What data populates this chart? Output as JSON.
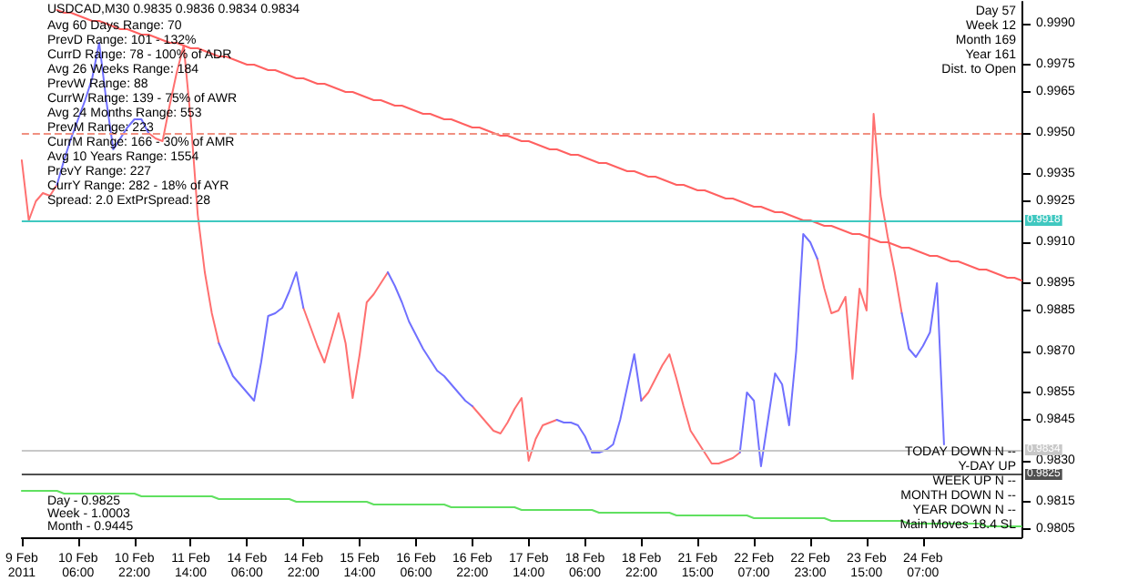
{
  "chart_data": {
    "type": "line",
    "title": "USDCAD,M30 0.9835 0.9836 0.9834 0.9834",
    "categories": [
      "9 Feb 2011",
      null,
      null,
      null,
      null,
      null,
      null,
      null,
      "10 Feb 06:00",
      null,
      null,
      null,
      null,
      null,
      null,
      null,
      "10 Feb 22:00",
      null,
      null,
      null,
      null,
      null,
      null,
      null,
      "11 Feb 14:00",
      null,
      null,
      null,
      null,
      null,
      null,
      null,
      "14 Feb 06:00",
      null,
      null,
      null,
      null,
      null,
      null,
      null,
      "14 Feb 22:00",
      null,
      null,
      null,
      null,
      null,
      null,
      null,
      "15 Feb 14:00",
      null,
      null,
      null,
      null,
      null,
      null,
      null,
      "16 Feb 06:00",
      null,
      null,
      null,
      null,
      null,
      null,
      null,
      "16 Feb 22:00",
      null,
      null,
      null,
      null,
      null,
      null,
      null,
      "17 Feb 14:00",
      null,
      null,
      null,
      null,
      null,
      null,
      null,
      "18 Feb 06:00",
      null,
      null,
      null,
      null,
      null,
      null,
      null,
      "18 Feb 22:00",
      null,
      null,
      null,
      null,
      null,
      null,
      null,
      "21 Feb 15:00",
      null,
      null,
      null,
      null,
      null,
      null,
      null,
      "22 Feb 07:00",
      null,
      null,
      null,
      null,
      null,
      null,
      null,
      "22 Feb 23:00",
      null,
      null,
      null,
      null,
      null,
      null,
      null,
      "23 Feb 15:00",
      null,
      null,
      null,
      null,
      null,
      null,
      null,
      "24 Feb 07:00",
      null,
      null,
      null,
      null,
      null,
      null,
      null,
      null,
      null,
      null,
      null,
      null,
      null,
      null
    ],
    "ylim": [
      0.9802,
      0.9998
    ],
    "yticks": [
      {
        "value": 0.999,
        "label": "0.9990"
      },
      0.9975,
      0.9965,
      {
        "value": 0.995,
        "label": "0.9950"
      },
      0.9935,
      0.9925,
      {
        "value": 0.991,
        "label": "0.9910"
      },
      0.9895,
      0.9885,
      {
        "value": 0.987,
        "label": "0.9870"
      },
      0.9855,
      0.9845,
      {
        "value": 0.983,
        "label": "0.9830"
      },
      0.9815,
      0.9805
    ],
    "grid": false,
    "marker": "none",
    "line_style": "solid",
    "series": [
      {
        "color": "#ff7070",
        "values": [
          0.994,
          0.9918,
          0.9925,
          0.9928,
          0.9927,
          0.9931,
          null,
          null,
          null,
          null,
          null,
          null,
          null,
          null,
          null,
          null,
          null,
          null,
          0.995,
          0.9948,
          0.9947,
          0.996,
          0.9972,
          0.9982,
          0.9955,
          0.992,
          0.9899,
          0.9884,
          0.9873,
          null,
          null,
          null,
          null,
          null,
          null,
          null,
          null,
          null,
          null,
          null,
          0.9886,
          0.9879,
          0.9872,
          0.9866,
          0.9875,
          0.9884,
          0.9873,
          0.9853,
          0.9869,
          0.9888,
          0.9891,
          0.9895,
          0.9899,
          null,
          null,
          null,
          null,
          null,
          null,
          null,
          null,
          null,
          null,
          null,
          0.985,
          0.9847,
          0.9844,
          0.9841,
          0.984,
          0.9844,
          0.9849,
          0.9853,
          0.983,
          0.9838,
          0.9843,
          0.9844,
          0.9845,
          null,
          null,
          null,
          null,
          null,
          null,
          null,
          null,
          null,
          null,
          null,
          0.9852,
          0.9855,
          0.986,
          0.9865,
          0.9869,
          0.986,
          0.985,
          0.9841,
          0.9837,
          0.9833,
          0.9829,
          0.9829,
          0.983,
          0.9831,
          0.9833,
          null,
          null,
          null,
          null,
          null,
          null,
          null,
          null,
          null,
          null,
          0.9904,
          0.9893,
          0.9884,
          0.9885,
          0.989,
          0.986,
          0.9893,
          0.9885,
          0.9957,
          0.9927,
          0.9912,
          0.9899,
          0.9884,
          null,
          null,
          null,
          null,
          null,
          null,
          null,
          null,
          null,
          null,
          null,
          null,
          null,
          null,
          null,
          null,
          null
        ]
      },
      {
        "color": "#7070ff",
        "values": [
          null,
          null,
          null,
          null,
          null,
          0.9931,
          0.994,
          0.9948,
          0.9955,
          0.9962,
          0.997,
          0.9983,
          0.9962,
          0.9944,
          0.9948,
          0.9952,
          0.9955,
          0.9955,
          0.995,
          null,
          null,
          null,
          null,
          null,
          null,
          null,
          null,
          null,
          0.9873,
          0.9867,
          0.9861,
          0.9858,
          0.9855,
          0.9852,
          0.9866,
          0.9883,
          0.9884,
          0.9886,
          0.9892,
          0.9899,
          0.9886,
          null,
          null,
          null,
          null,
          null,
          null,
          null,
          null,
          null,
          null,
          null,
          0.9899,
          0.9894,
          0.9888,
          0.9881,
          0.9876,
          0.9871,
          0.9867,
          0.9863,
          0.9861,
          0.9858,
          0.9855,
          0.9852,
          0.985,
          null,
          null,
          null,
          null,
          null,
          null,
          null,
          null,
          null,
          null,
          null,
          0.9845,
          0.9844,
          0.9844,
          0.9843,
          0.9839,
          0.9833,
          0.9833,
          0.9834,
          0.9836,
          0.9845,
          0.9857,
          0.9869,
          0.9852,
          null,
          null,
          null,
          null,
          null,
          null,
          null,
          null,
          null,
          null,
          null,
          null,
          null,
          0.9833,
          0.9855,
          0.9852,
          0.9828,
          0.9845,
          0.9862,
          0.9858,
          0.9843,
          0.987,
          0.9913,
          0.991,
          0.9904,
          null,
          null,
          null,
          null,
          null,
          null,
          null,
          null,
          null,
          null,
          null,
          0.9884,
          0.9871,
          0.9868,
          0.9872,
          0.9877,
          0.9895,
          0.9836,
          null,
          null,
          null,
          null,
          null,
          null,
          null,
          null,
          null,
          null,
          null
        ]
      },
      {
        "color": "#ff6060",
        "values": [
          null,
          null,
          null,
          null,
          null,
          0.9995,
          0.9994,
          0.9994,
          0.9993,
          0.9992,
          0.9991,
          0.9991,
          0.999,
          0.9989,
          0.9988,
          0.9988,
          0.9987,
          0.9986,
          0.9986,
          0.9985,
          0.9984,
          0.9983,
          0.9983,
          0.9982,
          0.9981,
          0.9981,
          0.998,
          0.9979,
          0.9978,
          0.9978,
          0.9977,
          0.9976,
          0.9975,
          0.9975,
          0.9974,
          0.9973,
          0.9973,
          0.9972,
          0.9971,
          0.997,
          0.997,
          0.9969,
          0.9968,
          0.9968,
          0.9967,
          0.9966,
          0.9965,
          0.9965,
          0.9964,
          0.9963,
          0.9962,
          0.9962,
          0.9961,
          0.996,
          0.996,
          0.9959,
          0.9958,
          0.9957,
          0.9957,
          0.9956,
          0.9955,
          0.9955,
          0.9954,
          0.9953,
          0.9952,
          0.9952,
          0.9951,
          0.995,
          0.9949,
          0.9949,
          0.9948,
          0.9947,
          0.9947,
          0.9946,
          0.9945,
          0.9944,
          0.9944,
          0.9943,
          0.9942,
          0.9942,
          0.9941,
          0.994,
          0.9939,
          0.9939,
          0.9938,
          0.9937,
          0.9936,
          0.9936,
          0.9935,
          0.9934,
          0.9934,
          0.9933,
          0.9932,
          0.9931,
          0.9931,
          0.993,
          0.9929,
          0.9929,
          0.9928,
          0.9927,
          0.9926,
          0.9926,
          0.9925,
          0.9924,
          0.9923,
          0.9923,
          0.9922,
          0.9921,
          0.9921,
          0.992,
          0.9919,
          0.9918,
          0.9918,
          0.9917,
          0.9916,
          0.9916,
          0.9915,
          0.9914,
          0.9913,
          0.9913,
          0.9912,
          0.9911,
          0.991,
          0.991,
          0.9909,
          0.9908,
          0.9908,
          0.9907,
          0.9906,
          0.9905,
          0.9905,
          0.9904,
          0.9903,
          0.9903,
          0.9902,
          0.9901,
          0.99,
          0.99,
          0.9899,
          0.9898,
          0.9897,
          0.9897,
          0.9896
        ]
      },
      {
        "color": "#60e060",
        "values": [
          0.9819,
          0.9819,
          0.9819,
          0.9819,
          0.9819,
          0.9819,
          0.9818,
          0.9818,
          0.9818,
          0.9818,
          0.9818,
          0.9818,
          0.9818,
          0.9818,
          0.9818,
          0.9818,
          0.9818,
          0.9817,
          0.9817,
          0.9817,
          0.9817,
          0.9817,
          0.9817,
          0.9817,
          0.9817,
          0.9817,
          0.9817,
          0.9817,
          0.9816,
          0.9816,
          0.9816,
          0.9816,
          0.9816,
          0.9816,
          0.9816,
          0.9816,
          0.9816,
          0.9816,
          0.9816,
          0.9815,
          0.9815,
          0.9815,
          0.9815,
          0.9815,
          0.9815,
          0.9815,
          0.9815,
          0.9815,
          0.9815,
          0.9815,
          0.9814,
          0.9814,
          0.9814,
          0.9814,
          0.9814,
          0.9814,
          0.9814,
          0.9814,
          0.9814,
          0.9814,
          0.9814,
          0.9813,
          0.9813,
          0.9813,
          0.9813,
          0.9813,
          0.9813,
          0.9813,
          0.9813,
          0.9813,
          0.9813,
          0.9812,
          0.9812,
          0.9812,
          0.9812,
          0.9812,
          0.9812,
          0.9812,
          0.9812,
          0.9812,
          0.9812,
          0.9812,
          0.9811,
          0.9811,
          0.9811,
          0.9811,
          0.9811,
          0.9811,
          0.9811,
          0.9811,
          0.9811,
          0.9811,
          0.9811,
          0.981,
          0.981,
          0.981,
          0.981,
          0.981,
          0.981,
          0.981,
          0.981,
          0.981,
          0.981,
          0.981,
          0.9809,
          0.9809,
          0.9809,
          0.9809,
          0.9809,
          0.9809,
          0.9809,
          0.9809,
          0.9809,
          0.9809,
          0.9809,
          0.9808,
          0.9808,
          0.9808,
          0.9808,
          0.9808,
          0.9808,
          0.9808,
          0.9808,
          0.9808,
          0.9808,
          0.9808,
          0.9807,
          0.9807,
          0.9807,
          0.9807,
          0.9807,
          0.9807,
          0.9807,
          0.9807,
          0.9807,
          0.9807,
          0.9807,
          0.9806,
          0.9806,
          0.9806,
          0.9806,
          0.9806,
          0.9806
        ]
      }
    ],
    "ref_lines": [
      {
        "axis": "y",
        "value": 0.995,
        "color": "#f09080",
        "line_style": "dashed"
      },
      {
        "axis": "y",
        "value": 0.9918,
        "label": "0.9918",
        "color": "#40c8c0",
        "line_style": "solid"
      },
      {
        "axis": "y",
        "value": 0.9834,
        "label": "0.9834",
        "color": "#c8c8c8",
        "line_style": "solid"
      },
      {
        "axis": "y",
        "value": 0.9825,
        "label": "0.9825",
        "color": "#505050",
        "line_style": "solid"
      }
    ],
    "annotations": [
      "Avg 60 Days Range: 70",
      "PrevD Range: 101 - 132%",
      "CurrD Range: 78 - 100% of ADR",
      "Avg 26 Weeks Range: 184",
      "PrevW Range: 88",
      "CurrW Range: 139 - 75% of AWR",
      "Avg 24 Months Range: 553",
      "PrevM Range: 223",
      "CurrM Range: 166 - 30% of AMR",
      "Avg 10 Years Range: 1554",
      "PrevY Range: 227",
      "CurrY Range: 282 - 18% of AYR",
      "Spread: 2.0 ExtPrSpread: 28",
      "Day 57",
      "Week 12",
      "Month 169",
      "Year 161",
      "Dist. to Open",
      "TODAY DOWN N --",
      "Y-DAY UP",
      "WEEK UP N --",
      "MONTH DOWN N --",
      "YEAR DOWN N --",
      "Main Moves 18.4 SL",
      "Day - 0.9825",
      "Week - 1.0003",
      "Month - 0.9445"
    ]
  }
}
